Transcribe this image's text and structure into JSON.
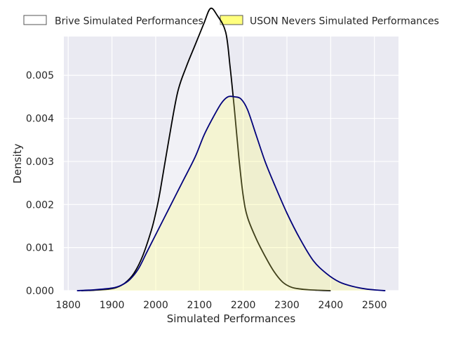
{
  "chart_data": {
    "type": "area",
    "title": "",
    "xlabel": "Simulated Performances",
    "ylabel": "Density",
    "xlim": [
      1790,
      2555
    ],
    "ylim": [
      0,
      0.0059
    ],
    "x_ticks": [
      1800,
      1900,
      2000,
      2100,
      2200,
      2300,
      2400,
      2500
    ],
    "x_tick_labels": [
      "1800",
      "1900",
      "2000",
      "2100",
      "2200",
      "2300",
      "2400",
      "2500"
    ],
    "y_ticks": [
      0.0,
      0.001,
      0.002,
      0.003,
      0.004,
      0.005
    ],
    "y_tick_labels": [
      "0.000",
      "0.001",
      "0.002",
      "0.003",
      "0.004",
      "0.005"
    ],
    "grid": true,
    "legend_position": "top, outside plot",
    "plot_background": "#eaeaf2",
    "series": [
      {
        "name": "Brive Simulated Performances",
        "line_color": "#000000",
        "fill_color": "#ffffff",
        "fill_opacity": 0.35,
        "x": [
          1830,
          1860,
          1890,
          1910,
          1930,
          1950,
          1970,
          1990,
          2000,
          2010,
          2030,
          2050,
          2070,
          2090,
          2110,
          2125,
          2140,
          2160,
          2170,
          2180,
          2190,
          2200,
          2210,
          2230,
          2250,
          2270,
          2290,
          2310,
          2330,
          2350,
          2370,
          2400
        ],
        "values": [
          0,
          1e-05,
          3e-05,
          7e-05,
          0.00018,
          0.0004,
          0.0008,
          0.0014,
          0.0018,
          0.0023,
          0.0035,
          0.0046,
          0.0052,
          0.0057,
          0.0062,
          0.00655,
          0.0064,
          0.006,
          0.0052,
          0.0042,
          0.0031,
          0.0022,
          0.0017,
          0.0012,
          0.0008,
          0.00045,
          0.0002,
          8e-05,
          4e-05,
          2e-05,
          1e-05,
          0
        ]
      },
      {
        "name": "USON Nevers Simulated Performances",
        "line_color": "#00007a",
        "fill_color": "#ffff66",
        "fill_opacity": 0.25,
        "x": [
          1820,
          1860,
          1900,
          1920,
          1940,
          1960,
          1980,
          2000,
          2030,
          2060,
          2090,
          2110,
          2130,
          2150,
          2165,
          2180,
          2195,
          2210,
          2230,
          2250,
          2270,
          2300,
          2330,
          2360,
          2390,
          2420,
          2450,
          2480,
          2510,
          2525
        ],
        "values": [
          0,
          2e-05,
          6e-05,
          0.00012,
          0.00025,
          0.0005,
          0.0009,
          0.0013,
          0.0019,
          0.0025,
          0.0031,
          0.0036,
          0.004,
          0.00435,
          0.0045,
          0.0045,
          0.00445,
          0.0042,
          0.0036,
          0.003,
          0.0025,
          0.0018,
          0.0012,
          0.0007,
          0.0004,
          0.0002,
          0.0001,
          4e-05,
          1e-05,
          0
        ]
      }
    ]
  }
}
